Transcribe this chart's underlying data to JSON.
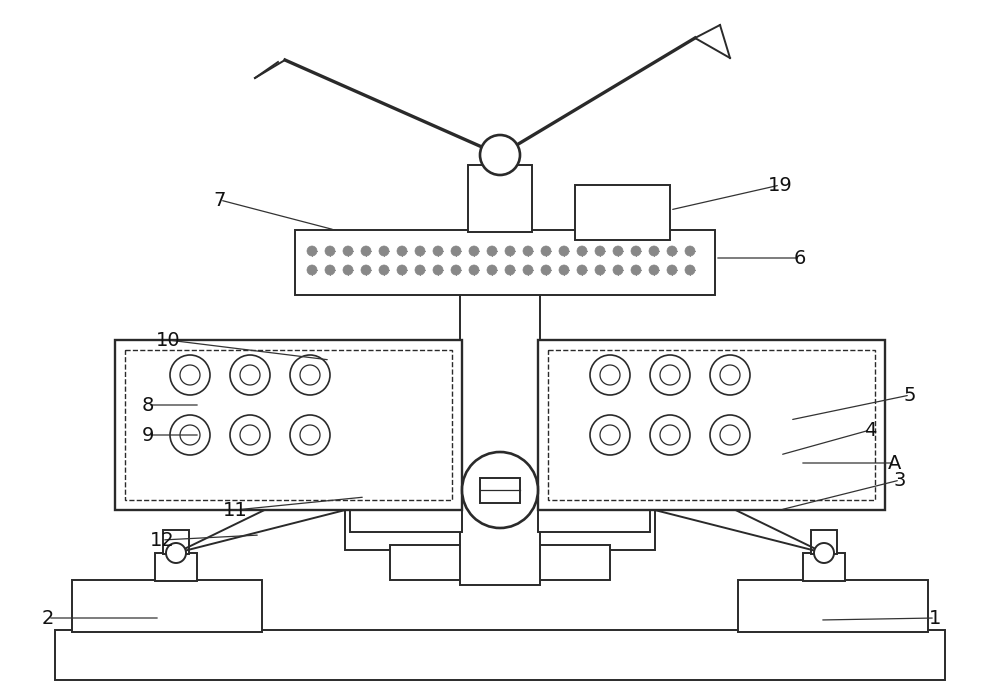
{
  "bg_color": "#ffffff",
  "lc": "#2a2a2a",
  "lw": 1.4,
  "fig_w": 10.0,
  "fig_h": 6.97,
  "dpi": 100
}
